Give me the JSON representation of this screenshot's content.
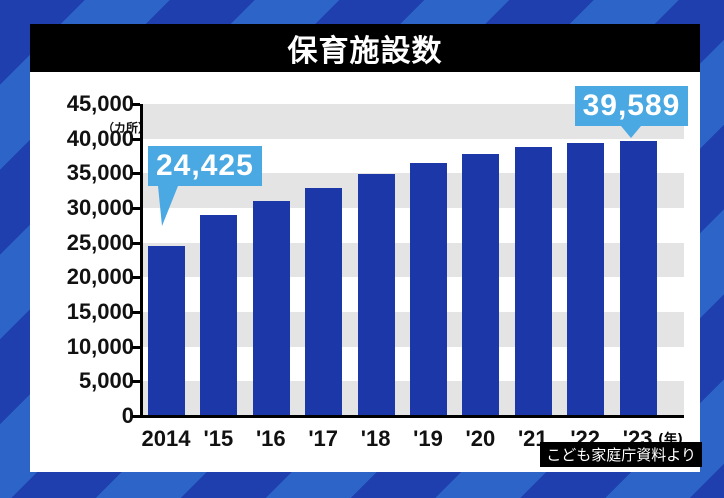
{
  "title": "保育施設数",
  "unit_label": "（カ所）",
  "x_unit_label": "(年)",
  "source": "こども家庭庁資料より",
  "colors": {
    "bar": "#1c38a8",
    "callout": "#4aa8e2",
    "band": "#e4e4e4",
    "title_bg": "#000000"
  },
  "callouts": {
    "first": "24,425",
    "last": "39,589"
  },
  "yticks": [
    "45,000",
    "40,000",
    "35,000",
    "30,000",
    "25,000",
    "20,000",
    "15,000",
    "10,000",
    "5,000",
    "0"
  ],
  "chart_data": {
    "type": "bar",
    "title": "保育施設数",
    "xlabel": "(年)",
    "ylabel": "（カ所）",
    "categories": [
      "2014",
      "'15",
      "'16",
      "'17",
      "'18",
      "'19",
      "'20",
      "'21",
      "'22",
      "'23"
    ],
    "values": [
      24425,
      28800,
      30900,
      32800,
      34800,
      36300,
      37700,
      38600,
      39200,
      39589
    ],
    "ylim": [
      0,
      45000
    ],
    "ytick_step": 5000,
    "grid": "alternating horizontal bands",
    "legend": "none",
    "annotations": [
      {
        "category": "2014",
        "text": "24,425"
      },
      {
        "category": "'23",
        "text": "39,589"
      }
    ],
    "source": "こども家庭庁資料より"
  }
}
